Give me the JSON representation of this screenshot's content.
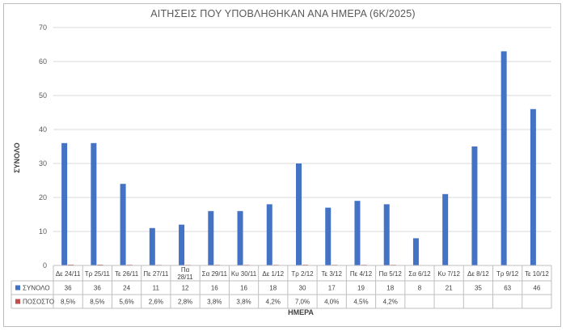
{
  "chart_data": {
    "type": "bar",
    "title": "ΑΙΤΗΣΕΙΣ ΠΟΥ ΥΠΟΒΛΗΘΗΚΑΝ ΑΝΑ ΗΜΕΡΑ (6Κ/2025)",
    "xlabel": "ΗΜΕΡΑ",
    "ylabel": "ΣΥΝΟΛΟ",
    "ylim": [
      0,
      70
    ],
    "yticks": [
      "0",
      "10",
      "20",
      "30",
      "40",
      "50",
      "60",
      "70"
    ],
    "grid": true,
    "categories": [
      "Δε 24/11",
      "Τρ 25/11",
      "Τε 26/11",
      "Πε 27/11",
      "Πα 28/11",
      "Σα 29/11",
      "Κυ 30/11",
      "Δε 1/12",
      "Τρ 2/12",
      "Τε 3/12",
      "Πε 4/12",
      "Πα 5/12",
      "Σα 6/12",
      "Κυ 7/12",
      "Δε 8/12",
      "Τρ 9/12",
      "Τε 10/12"
    ],
    "series": [
      {
        "name": "ΣΥΝΟΛΟ",
        "color": "#4472c4",
        "values": [
          36,
          36,
          24,
          11,
          12,
          16,
          16,
          18,
          30,
          17,
          19,
          18,
          8,
          21,
          35,
          63,
          46
        ],
        "labels": [
          "36",
          "36",
          "24",
          "11",
          "12",
          "16",
          "16",
          "18",
          "30",
          "17",
          "19",
          "18",
          "8",
          "21",
          "35",
          "63",
          "46"
        ]
      },
      {
        "name": "ΠΟΣΟΣΤΟ",
        "color": "#c0504d",
        "values": [
          0.085,
          0.085,
          0.056,
          0.026,
          0.028,
          0.038,
          0.038,
          0.042,
          0.07,
          0.04,
          0.045,
          0.042,
          null,
          null,
          null,
          null,
          null
        ],
        "labels": [
          "8,5%",
          "8,5%",
          "5,6%",
          "2,6%",
          "2,8%",
          "3,8%",
          "3,8%",
          "4,2%",
          "7,0%",
          "4,0%",
          "4,5%",
          "4,2%",
          "",
          "",
          "",
          "",
          ""
        ]
      }
    ]
  }
}
